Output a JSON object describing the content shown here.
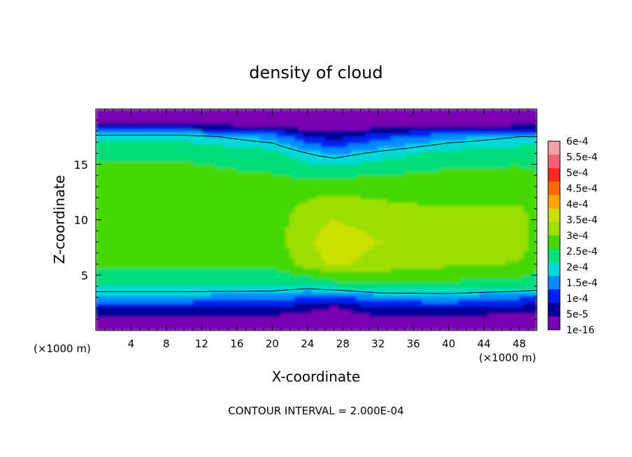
{
  "chart_data": {
    "type": "heatmap",
    "title": "density of cloud",
    "xlabel": "X-coordinate",
    "ylabel": "Z-coordinate",
    "x_unit_left": "(×1000 m)",
    "x_unit_right": "(×1000 m)",
    "xlim": [
      0,
      50
    ],
    "ylim": [
      0,
      20
    ],
    "x_ticks": [
      4,
      8,
      12,
      16,
      20,
      24,
      28,
      32,
      36,
      40,
      44,
      48
    ],
    "x_tick_labels": [
      "4",
      "8",
      "12",
      "16",
      "20",
      "24",
      "28",
      "32",
      "36",
      "40",
      "44",
      "48"
    ],
    "y_ticks": [
      5,
      10,
      15
    ],
    "y_tick_labels": [
      "5",
      "10",
      "15"
    ],
    "footer": "CONTOUR INTERVAL = 2.000E-04",
    "colorbar": {
      "labels": [
        "6e-4",
        "5.5e-4",
        "5e-4",
        "4.5e-4",
        "4e-4",
        "3.5e-4",
        "3e-4",
        "2.5e-4",
        "2e-4",
        "1.5e-4",
        "1e-4",
        "5e-5",
        "1e-16"
      ],
      "colors": [
        "#f4a0a8",
        "#f26078",
        "#ff2a1e",
        "#ff6a00",
        "#ffa500",
        "#cce000",
        "#9bde00",
        "#44d800",
        "#00de7a",
        "#00d8d8",
        "#008cff",
        "#0020f0",
        "#000098",
        "#7a00b4"
      ]
    },
    "contour_interval": 0.0002,
    "approx_fields": {
      "z_levels": [
        0.4,
        1,
        2,
        3,
        4,
        6,
        8,
        10,
        12,
        14,
        16,
        17.5,
        18.5,
        19.5
      ],
      "x_columns": [
        0,
        10,
        20,
        24,
        27,
        32,
        40,
        48,
        50
      ],
      "values_note_free": true,
      "density": [
        [
          1e-16,
          1e-16,
          1e-16,
          1e-16,
          1e-16,
          1e-16,
          1e-16,
          1e-16,
          1e-16
        ],
        [
          3e-05,
          3e-05,
          3e-05,
          2e-05,
          2e-05,
          3e-05,
          3e-05,
          2e-05,
          3e-05
        ],
        [
          8e-05,
          8e-05,
          8e-05,
          6e-05,
          4e-05,
          8e-05,
          9e-05,
          7e-05,
          6e-05
        ],
        [
          0.00017,
          0.00017,
          0.00016,
          0.00013,
          0.00012,
          0.00016,
          0.00017,
          0.00014,
          0.00013
        ],
        [
          0.00023,
          0.00023,
          0.00023,
          0.00022,
          0.00024,
          0.00026,
          0.00026,
          0.00025,
          0.00024
        ],
        [
          0.00029,
          0.00029,
          0.00029,
          0.00034,
          0.00038,
          0.00035,
          0.00033,
          0.00032,
          0.0003
        ],
        [
          0.00031,
          0.00031,
          0.0003,
          0.00036,
          0.0004,
          0.00037,
          0.00036,
          0.00034,
          0.00031
        ],
        [
          0.00031,
          0.00031,
          0.0003,
          0.00035,
          0.00037,
          0.00035,
          0.00034,
          0.00035,
          0.0003
        ],
        [
          0.0003,
          0.0003,
          0.0003,
          0.00032,
          0.00033,
          0.00032,
          0.00031,
          0.00031,
          0.0003
        ],
        [
          0.00029,
          0.00029,
          0.00028,
          0.00027,
          0.00027,
          0.00028,
          0.00029,
          0.00029,
          0.00028
        ],
        [
          0.00027,
          0.00027,
          0.00025,
          0.0002,
          0.00018,
          0.00021,
          0.00025,
          0.00026,
          0.00026
        ],
        [
          0.00022,
          0.00022,
          0.00017,
          0.0001,
          7e-05,
          0.00012,
          0.00017,
          0.0002,
          0.0002
        ],
        [
          6e-05,
          6e-05,
          4e-05,
          2e-05,
          2e-05,
          3e-05,
          4e-05,
          5e-05,
          5e-05
        ],
        [
          2e-05,
          2e-05,
          2e-05,
          1e-05,
          1e-05,
          1e-05,
          2e-05,
          2e-05,
          2e-05
        ]
      ]
    }
  }
}
